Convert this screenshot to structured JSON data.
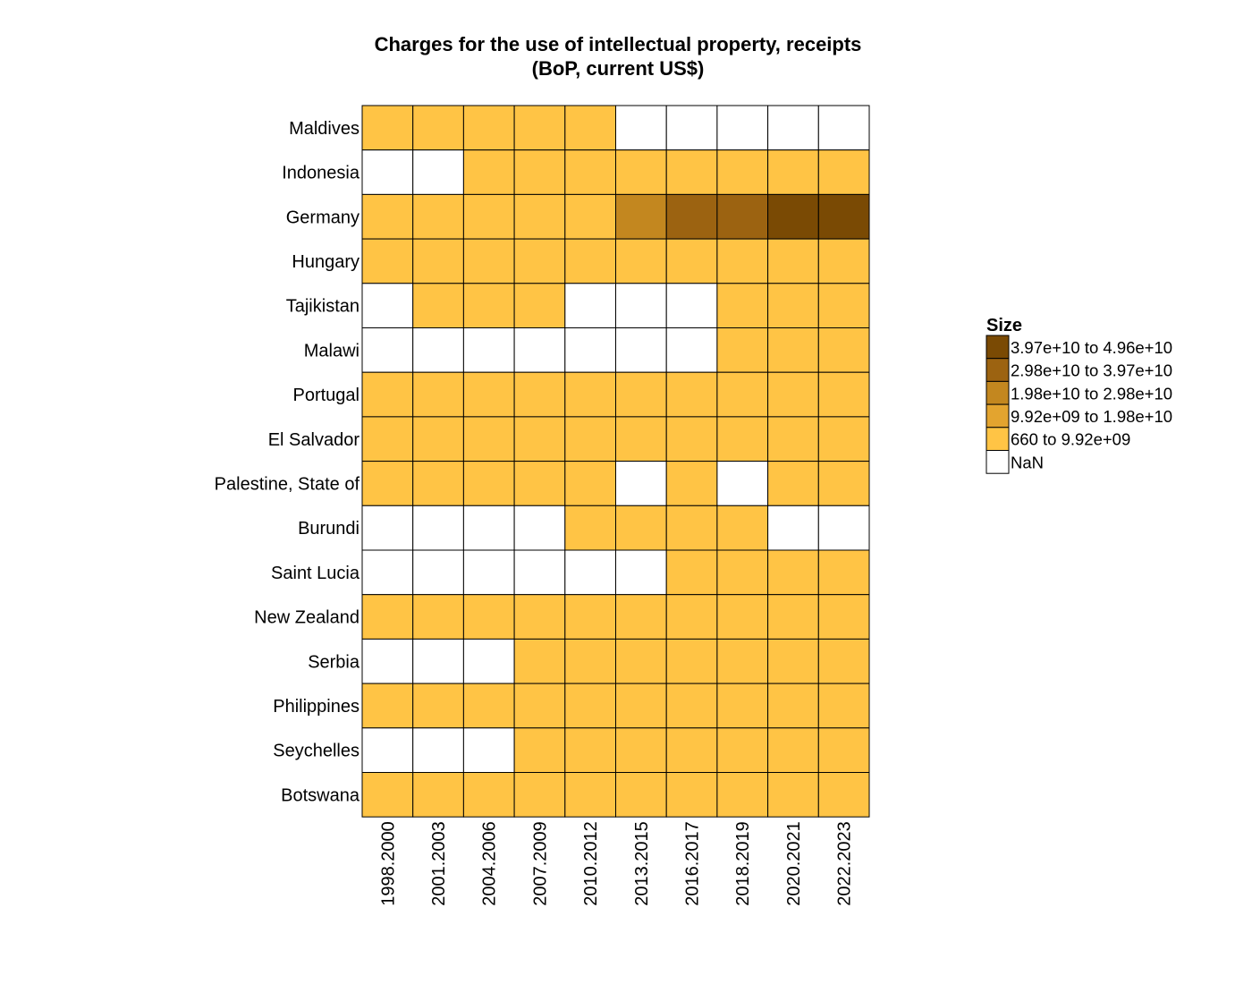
{
  "chart_data": {
    "type": "heatmap",
    "title": [
      "Charges for the use of intellectual property, receipts",
      "(BoP, current US$)"
    ],
    "y_categories": [
      "Maldives",
      "Indonesia",
      "Germany",
      "Hungary",
      "Tajikistan",
      "Malawi",
      "Portugal",
      "El Salvador",
      "Palestine, State of",
      "Burundi",
      "Saint Lucia",
      "New Zealand",
      "Serbia",
      "Philippines",
      "Seychelles",
      "Botswana"
    ],
    "x_categories": [
      "1998.2000",
      "2001.2003",
      "2004.2006",
      "2007.2009",
      "2010.2012",
      "2013.2015",
      "2016.2017",
      "2018.2019",
      "2020.2021",
      "2022.2023"
    ],
    "value_encoding": "index into legend.bins (0 = lowest bin); null = NaN",
    "values": [
      [
        0,
        0,
        0,
        0,
        0,
        null,
        null,
        null,
        null,
        null
      ],
      [
        null,
        null,
        0,
        0,
        0,
        0,
        0,
        0,
        0,
        0
      ],
      [
        0,
        0,
        0,
        0,
        0,
        2,
        3,
        3,
        4,
        4
      ],
      [
        0,
        0,
        0,
        0,
        0,
        0,
        0,
        0,
        0,
        0
      ],
      [
        null,
        0,
        0,
        0,
        null,
        null,
        null,
        0,
        0,
        0
      ],
      [
        null,
        null,
        null,
        null,
        null,
        null,
        null,
        0,
        0,
        0
      ],
      [
        0,
        0,
        0,
        0,
        0,
        0,
        0,
        0,
        0,
        0
      ],
      [
        0,
        0,
        0,
        0,
        0,
        0,
        0,
        0,
        0,
        0
      ],
      [
        0,
        0,
        0,
        0,
        0,
        null,
        0,
        null,
        0,
        0
      ],
      [
        null,
        null,
        null,
        null,
        0,
        0,
        0,
        0,
        null,
        null
      ],
      [
        null,
        null,
        null,
        null,
        null,
        null,
        0,
        0,
        0,
        0
      ],
      [
        0,
        0,
        0,
        0,
        0,
        0,
        0,
        0,
        0,
        0
      ],
      [
        null,
        null,
        null,
        0,
        0,
        0,
        0,
        0,
        0,
        0
      ],
      [
        0,
        0,
        0,
        0,
        0,
        0,
        0,
        0,
        0,
        0
      ],
      [
        null,
        null,
        null,
        0,
        0,
        0,
        0,
        0,
        0,
        0
      ],
      [
        0,
        0,
        0,
        0,
        0,
        0,
        0,
        0,
        0,
        0
      ]
    ],
    "legend": {
      "title": "Size",
      "placement": "right",
      "bins": [
        {
          "low": "660",
          "high": "9.92e+09",
          "color": "#ffc445"
        },
        {
          "low": "9.92e+09",
          "high": "1.98e+10",
          "color": "#e3a42f"
        },
        {
          "low": "1.98e+10",
          "high": "2.98e+10",
          "color": "#c3871f"
        },
        {
          "low": "2.98e+10",
          "high": "3.97e+10",
          "color": "#9c6311"
        },
        {
          "low": "3.97e+10",
          "high": "4.96e+10",
          "color": "#7a4a04"
        }
      ],
      "nan_label": "NaN",
      "nan_color": "#ffffff",
      "separator": "to"
    },
    "grid": true
  }
}
